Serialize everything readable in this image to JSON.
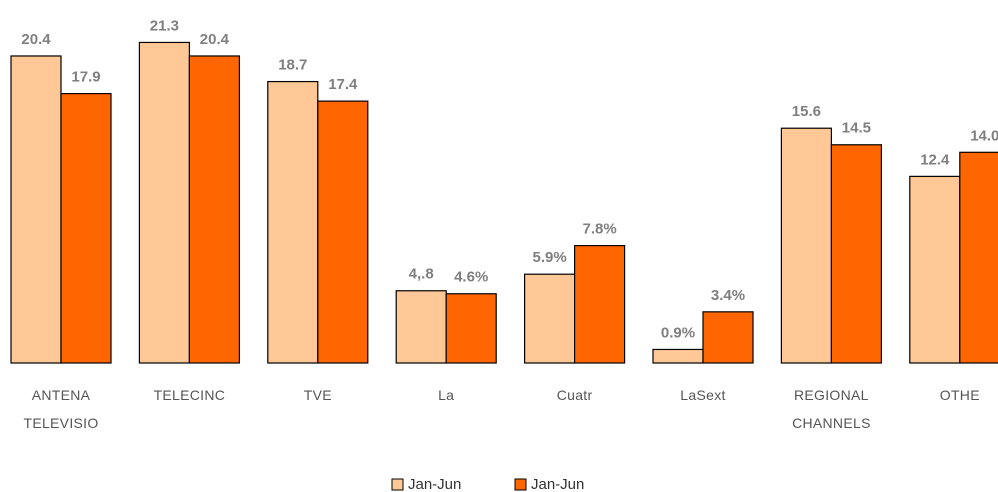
{
  "chart_data": {
    "type": "bar",
    "categories": [
      "ANTENA TELEVISIO",
      "TELECINC",
      "TVE",
      "La",
      "Cuatr",
      "LaSext",
      "REGIONAL CHANNELS",
      "OTHE"
    ],
    "series": [
      {
        "name": "Jan-Jun",
        "color": "#ffc896",
        "values": [
          20.4,
          21.3,
          18.7,
          4.8,
          5.9,
          0.9,
          15.6,
          12.4
        ],
        "value_labels": [
          "20.4",
          "21.3",
          "18.7",
          "4,.8",
          "5.9%",
          "0.9%",
          "15.6",
          "12.4"
        ]
      },
      {
        "name": "Jan-Jun",
        "color": "#ff6600",
        "values": [
          17.9,
          20.4,
          17.4,
          4.6,
          7.8,
          3.4,
          14.5,
          14.0
        ],
        "value_labels": [
          "17.9",
          "20.4",
          "17.4",
          "4.6%",
          "7.8%",
          "3.4%",
          "14.5",
          "14.0"
        ]
      }
    ],
    "legend": "bottom"
  }
}
